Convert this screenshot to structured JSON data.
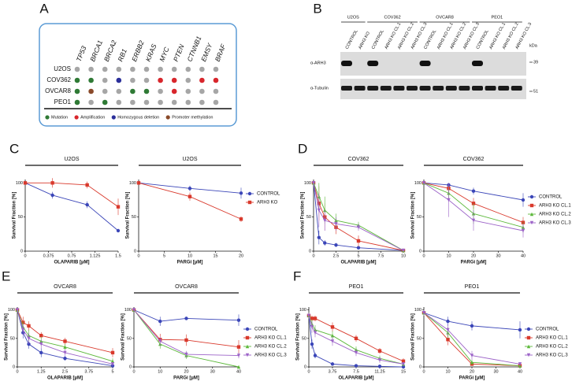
{
  "panel_a": {
    "panel": "A",
    "genes": [
      "TP53",
      "BRCA1",
      "BRCA2",
      "RB1",
      "ERBB2",
      "KRAS",
      "MYC",
      "PTEN",
      "CTNNB1",
      "EMSY",
      "BRAF"
    ],
    "cell_lines": [
      {
        "name": "U2OS",
        "status": [
          null,
          null,
          null,
          null,
          null,
          null,
          null,
          null,
          null,
          null,
          null
        ]
      },
      {
        "name": "COV362",
        "status": [
          0,
          0,
          null,
          2,
          null,
          null,
          1,
          1,
          null,
          1,
          1
        ]
      },
      {
        "name": "OVCAR8",
        "status": [
          0,
          3,
          null,
          null,
          0,
          0,
          null,
          1,
          null,
          null,
          null
        ]
      },
      {
        "name": "PEO1",
        "status": [
          0,
          null,
          0,
          null,
          null,
          null,
          null,
          null,
          null,
          null,
          null
        ]
      }
    ],
    "legend": [
      {
        "label": "Mutation",
        "color": "#2f7a35"
      },
      {
        "label": "Amplification",
        "color": "#d8262c"
      },
      {
        "label": "Homozygous deletion",
        "color": "#2b2f9a"
      },
      {
        "label": "Promoter methylation",
        "color": "#8a4a2a"
      }
    ]
  },
  "panel_b": {
    "panel": "B",
    "groups": [
      {
        "name": "U2OS",
        "lanes": [
          "CONTROL",
          "ARH3 KO"
        ]
      },
      {
        "name": "COV362",
        "lanes": [
          "CONTROL",
          "ARH3 KO CL.1",
          "ARH3 KO CL.2",
          "ARH3 KO CL.3"
        ]
      },
      {
        "name": "OVCAR8",
        "lanes": [
          "CONTROL",
          "ARH3 KO CL.1",
          "ARH3 KO CL.2",
          "ARH3 KO CL.3"
        ]
      },
      {
        "name": "PEO1",
        "lanes": [
          "CONTROL",
          "ARH3 KO CL.1",
          "ARH3 KO CL.2",
          "ARH3 KO CL.3"
        ]
      }
    ],
    "antibodies": [
      "α-ARH3",
      "α-Tubulin"
    ],
    "unit": "kDa",
    "markers": [
      39,
      51
    ]
  },
  "chart_data": [
    {
      "type": "line",
      "panel": "C",
      "title": "U2OS",
      "xlabel": "OLAPARIB [µM]",
      "ylabel": "Survival Fraction [%]",
      "legend": false,
      "x": [
        0,
        0.44,
        1,
        1.5
      ],
      "xlim": [
        0,
        1.5
      ],
      "xticks": [
        0,
        0.375,
        0.75,
        1.125,
        1.5
      ],
      "ylim": [
        0,
        105
      ],
      "yticks": [
        0,
        50,
        100
      ],
      "series": [
        {
          "color": "#3b46b8",
          "values": [
            100,
            82,
            68,
            30
          ],
          "errors": [
            0,
            5,
            5,
            2
          ]
        },
        {
          "color": "#d9392c",
          "values": [
            100,
            100,
            97,
            65
          ],
          "errors": [
            0,
            7,
            5,
            12
          ]
        }
      ]
    },
    {
      "type": "line",
      "title": "U2OS",
      "xlabel": "PARGi [µM]",
      "ylabel": "Survival Fraction [%]",
      "legend": true,
      "x": [
        0,
        10,
        20
      ],
      "xlim": [
        0,
        20
      ],
      "xticks": [
        0,
        5,
        10,
        15,
        20
      ],
      "ylim": [
        0,
        105
      ],
      "yticks": [
        0,
        50,
        100
      ],
      "series": [
        {
          "name": "CONTROL",
          "color": "#3b46b8",
          "values": [
            100,
            92,
            85
          ],
          "errors": [
            0,
            4,
            8
          ]
        },
        {
          "name": "ARH3 KO",
          "color": "#d9392c",
          "values": [
            100,
            80,
            47
          ],
          "errors": [
            0,
            6,
            4
          ]
        }
      ]
    },
    {
      "type": "line",
      "panel": "D",
      "title": "COV362",
      "xlabel": "OLAPARIB [µM]",
      "ylabel": "Survival Fraction [%]",
      "legend": false,
      "x": [
        0,
        0.6,
        1.25,
        2.5,
        5,
        10
      ],
      "xlim": [
        0,
        10
      ],
      "xticks": [
        0,
        2.5,
        5,
        7.5,
        10
      ],
      "ylim": [
        0,
        105
      ],
      "yticks": [
        0,
        50,
        100
      ],
      "series": [
        {
          "color": "#3b46b8",
          "values": [
            100,
            20,
            12,
            9,
            5,
            1
          ],
          "errors": [
            0,
            10,
            4,
            3,
            2,
            1
          ]
        },
        {
          "color": "#d9392c",
          "values": [
            100,
            70,
            50,
            35,
            15,
            1
          ],
          "errors": [
            0,
            25,
            20,
            10,
            8,
            1
          ]
        },
        {
          "color": "#5cb83a",
          "values": [
            100,
            80,
            60,
            45,
            38,
            1
          ],
          "errors": [
            0,
            20,
            20,
            10,
            5,
            1
          ]
        },
        {
          "color": "#9c63c8",
          "values": [
            100,
            60,
            45,
            40,
            35,
            1
          ],
          "errors": [
            0,
            25,
            15,
            10,
            5,
            1
          ]
        }
      ]
    },
    {
      "type": "line",
      "title": "COV362",
      "xlabel": "PARGi [µM]",
      "ylabel": "Survival Fraction [%]",
      "legend": true,
      "x": [
        0,
        10,
        20,
        40
      ],
      "xlim": [
        0,
        40
      ],
      "xticks": [
        0,
        10,
        20,
        30,
        40
      ],
      "ylim": [
        0,
        105
      ],
      "yticks": [
        0,
        50,
        100
      ],
      "series": [
        {
          "name": "CONTROL",
          "color": "#3b46b8",
          "values": [
            100,
            97,
            88,
            75
          ],
          "errors": [
            0,
            3,
            5,
            10
          ]
        },
        {
          "name": "ARH3 KO CL.1",
          "color": "#d9392c",
          "values": [
            100,
            92,
            70,
            42
          ],
          "errors": [
            0,
            5,
            8,
            8
          ]
        },
        {
          "name": "ARH3 KO CL.2",
          "color": "#5cb83a",
          "values": [
            100,
            85,
            55,
            35
          ],
          "errors": [
            0,
            8,
            15,
            8
          ]
        },
        {
          "name": "ARH3 KO CL.3",
          "color": "#9c63c8",
          "values": [
            100,
            75,
            45,
            30
          ],
          "errors": [
            0,
            25,
            15,
            10
          ]
        }
      ]
    },
    {
      "type": "line",
      "panel": "E",
      "title": "OVCAR8",
      "xlabel": "OLAPARIB [µM]",
      "ylabel": "Survival Fraction [%]",
      "legend": false,
      "x": [
        0,
        0.3,
        0.6,
        1.25,
        2.5,
        5
      ],
      "xlim": [
        0,
        5
      ],
      "xticks": [
        0,
        1.25,
        2.5,
        3.75,
        5
      ],
      "ylim": [
        0,
        105
      ],
      "yticks": [
        0,
        50,
        100
      ],
      "series": [
        {
          "color": "#3b46b8",
          "values": [
            100,
            60,
            40,
            25,
            15,
            2
          ],
          "errors": [
            0,
            10,
            8,
            8,
            4,
            2
          ]
        },
        {
          "color": "#d9392c",
          "values": [
            100,
            78,
            72,
            55,
            45,
            25
          ],
          "errors": [
            0,
            10,
            8,
            6,
            6,
            8
          ]
        },
        {
          "color": "#5cb83a",
          "values": [
            100,
            70,
            55,
            45,
            35,
            10
          ],
          "errors": [
            0,
            10,
            10,
            8,
            5,
            5
          ]
        },
        {
          "color": "#9c63c8",
          "values": [
            100,
            65,
            50,
            40,
            25,
            5
          ],
          "errors": [
            0,
            10,
            10,
            8,
            6,
            3
          ]
        }
      ]
    },
    {
      "type": "line",
      "title": "OVCAR8",
      "xlabel": "PARGi [µM]",
      "ylabel": "Survival Fraction [%]",
      "legend": true,
      "x": [
        0,
        10,
        20,
        40
      ],
      "xlim": [
        0,
        40
      ],
      "xticks": [
        0,
        10,
        20,
        30,
        40
      ],
      "ylim": [
        0,
        105
      ],
      "yticks": [
        0,
        50,
        100
      ],
      "series": [
        {
          "name": "CONTROL",
          "color": "#3b46b8",
          "values": [
            100,
            80,
            85,
            82
          ],
          "errors": [
            0,
            8,
            3,
            10
          ]
        },
        {
          "name": "ARH3 KO CL.1",
          "color": "#d9392c",
          "values": [
            100,
            48,
            47,
            35
          ],
          "errors": [
            0,
            10,
            10,
            12
          ]
        },
        {
          "name": "ARH3 KO CL.2",
          "color": "#5cb83a",
          "values": [
            100,
            40,
            20,
            0
          ],
          "errors": [
            0,
            8,
            6,
            1
          ]
        },
        {
          "name": "ARH3 KO CL.3",
          "color": "#9c63c8",
          "values": [
            100,
            45,
            22,
            20
          ],
          "errors": [
            0,
            8,
            6,
            5
          ]
        }
      ]
    },
    {
      "type": "line",
      "panel": "F",
      "title": "PEO1",
      "xlabel": "OLAPARIB [µM]",
      "ylabel": "Survival Fraction [%]",
      "legend": false,
      "x": [
        0,
        0.5,
        1,
        3.75,
        7.5,
        11.25,
        15
      ],
      "xlim": [
        0,
        15
      ],
      "xticks": [
        0,
        3.75,
        7.5,
        11.25,
        15
      ],
      "ylim": [
        0,
        105
      ],
      "yticks": [
        0,
        50,
        100
      ],
      "series": [
        {
          "color": "#3b46b8",
          "values": [
            90,
            40,
            20,
            5,
            2,
            1,
            0
          ],
          "errors": [
            5,
            8,
            5,
            2,
            1,
            1,
            0
          ]
        },
        {
          "color": "#d9392c",
          "values": [
            90,
            85,
            85,
            70,
            50,
            28,
            10
          ],
          "errors": [
            5,
            5,
            5,
            8,
            6,
            5,
            5
          ]
        },
        {
          "color": "#5cb83a",
          "values": [
            90,
            75,
            65,
            55,
            30,
            15,
            5
          ],
          "errors": [
            5,
            8,
            8,
            8,
            6,
            5,
            3
          ]
        },
        {
          "color": "#9c63c8",
          "values": [
            90,
            70,
            60,
            45,
            25,
            12,
            5
          ],
          "errors": [
            5,
            10,
            8,
            8,
            6,
            5,
            3
          ]
        }
      ]
    },
    {
      "type": "line",
      "title": "PEO1",
      "xlabel": "PARGi [µM]",
      "ylabel": "Survival Fraction [%]",
      "legend": true,
      "x": [
        0,
        10,
        20,
        40
      ],
      "xlim": [
        0,
        40
      ],
      "xticks": [
        0,
        10,
        20,
        30,
        40
      ],
      "ylim": [
        0,
        105
      ],
      "yticks": [
        0,
        50,
        100
      ],
      "series": [
        {
          "name": "CONTROL",
          "color": "#3b46b8",
          "values": [
            95,
            80,
            72,
            65
          ],
          "errors": [
            5,
            8,
            8,
            15
          ]
        },
        {
          "name": "ARH3 KO CL.1",
          "color": "#d9392c",
          "values": [
            95,
            48,
            5,
            2
          ],
          "errors": [
            5,
            10,
            3,
            1
          ]
        },
        {
          "name": "ARH3 KO CL.2",
          "color": "#5cb83a",
          "values": [
            95,
            60,
            8,
            2
          ],
          "errors": [
            5,
            10,
            4,
            1
          ]
        },
        {
          "name": "ARH3 KO CL.3",
          "color": "#9c63c8",
          "values": [
            95,
            65,
            20,
            5
          ],
          "errors": [
            5,
            10,
            8,
            3
          ]
        }
      ]
    }
  ]
}
